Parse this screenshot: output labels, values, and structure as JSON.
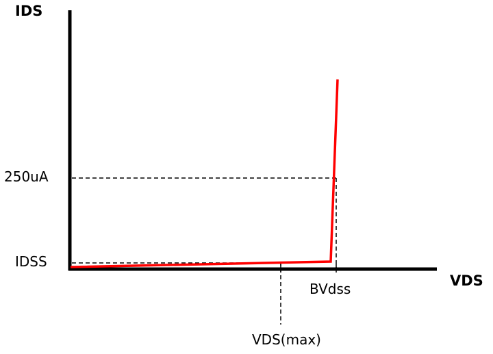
{
  "labels": {
    "y_axis": "IDS",
    "x_axis": "VDS",
    "level_250": "250uA",
    "idss": "IDSS",
    "bvdss": "BVdss",
    "vds_max": "VDS(max)"
  },
  "colors": {
    "curve": "#ff0000",
    "axes": "#000000",
    "guides": "#000000"
  }
}
